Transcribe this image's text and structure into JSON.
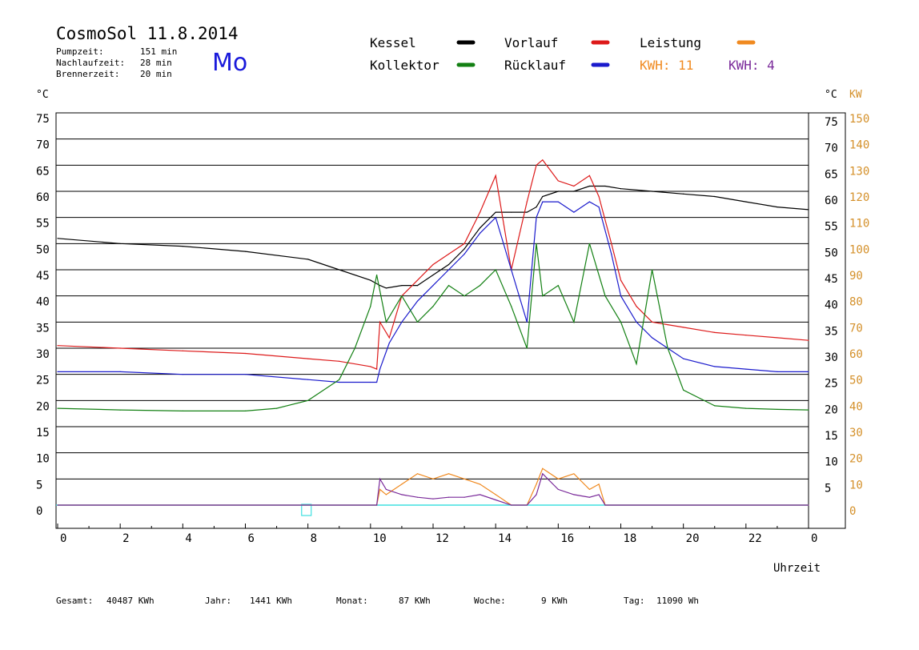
{
  "header": {
    "title": "CosmoSol 11.8.2014",
    "stats": [
      {
        "label": "Pumpzeit:",
        "value": "151 min"
      },
      {
        "label": "Nachlaufzeit:",
        "value": "28 min"
      },
      {
        "label": "Brennerzeit:",
        "value": "20 min"
      }
    ],
    "weekday": "Mo"
  },
  "legend": {
    "kessel": "Kessel",
    "kollektor": "Kollektor",
    "vorlauf": "Vorlauf",
    "ruecklauf": "Rücklauf",
    "leistung": "Leistung",
    "kwh_orange": "KWH: 11",
    "kwh_purple": "KWH: 4"
  },
  "colors": {
    "kessel": "#000000",
    "kollektor": "#138013",
    "vorlauf": "#dd1a1a",
    "ruecklauf": "#1a1acc",
    "leistung": "#f08a20",
    "kwh2": "#7a2a9a",
    "baseline": "#40e0e0",
    "axis_kw": "#d4902a"
  },
  "footer": [
    {
      "label": "Gesamt:",
      "value": "40487 KWh"
    },
    {
      "label": "Jahr:",
      "value": "1441 KWh"
    },
    {
      "label": "Monat:",
      "value": "87 KWh"
    },
    {
      "label": "Woche:",
      "value": "9 KWh"
    },
    {
      "label": "Tag:",
      "value": "11090 Wh"
    }
  ],
  "chart_data": {
    "type": "line",
    "xlabel": "Uhrzeit",
    "ylabel_left": "°C",
    "ylabel_right": "°C",
    "ylabel_right2": "KW",
    "xlim": [
      0,
      24
    ],
    "ylim": [
      0,
      75
    ],
    "x_ticks": [
      "0",
      "2",
      "4",
      "6",
      "8",
      "10",
      "12",
      "14",
      "16",
      "18",
      "20",
      "22",
      "0"
    ],
    "x_tick_hours": [
      0,
      2,
      4,
      6,
      8,
      10,
      12,
      14,
      16,
      18,
      20,
      22,
      24
    ],
    "y_ticks_left": [
      "0",
      "5",
      "10",
      "15",
      "20",
      "25",
      "30",
      "35",
      "40",
      "45",
      "50",
      "55",
      "60",
      "65",
      "70",
      "75"
    ],
    "y_ticks_right": [
      "5",
      "10",
      "15",
      "20",
      "25",
      "30",
      "35",
      "40",
      "45",
      "50",
      "55",
      "60",
      "65",
      "70",
      "75"
    ],
    "y_ticks_kw": [
      "0",
      "10",
      "20",
      "30",
      "40",
      "50",
      "60",
      "70",
      "80",
      "90",
      "100",
      "110",
      "120",
      "130",
      "140",
      "150"
    ],
    "grid": true,
    "legend_position": "top",
    "series": [
      {
        "name": "Kessel",
        "color_key": "kessel",
        "x": [
          0,
          2,
          4,
          6,
          8,
          9,
          10,
          10.3,
          10.5,
          11,
          11.5,
          12,
          12.5,
          13,
          13.5,
          14,
          14.5,
          15,
          15.3,
          15.5,
          16,
          16.5,
          17,
          17.5,
          18,
          19,
          20,
          21,
          22,
          23,
          24
        ],
        "y": [
          51,
          50,
          49.5,
          48.5,
          47,
          45,
          43,
          42,
          41.5,
          42,
          42,
          44,
          46,
          49,
          53,
          56,
          56,
          56,
          57,
          59,
          60,
          60,
          61,
          61,
          60.5,
          60,
          59.5,
          59,
          58,
          57,
          56.5
        ]
      },
      {
        "name": "Vorlauf",
        "color_key": "vorlauf",
        "x": [
          0,
          2,
          4,
          6,
          8,
          9,
          10,
          10.2,
          10.3,
          10.6,
          11,
          11.5,
          12,
          12.5,
          13,
          13.5,
          14,
          14.5,
          15,
          15.3,
          15.5,
          16,
          16.5,
          17,
          17.3,
          17.7,
          18,
          18.5,
          19,
          19.5,
          20,
          21,
          22,
          23,
          24
        ],
        "y": [
          30.5,
          30,
          29.5,
          29,
          28,
          27.5,
          26.5,
          26,
          35,
          32,
          40,
          43,
          46,
          48,
          50,
          56,
          63,
          45,
          58,
          65,
          66,
          62,
          61,
          63,
          59,
          50,
          43,
          38,
          35,
          34.5,
          34,
          33,
          32.5,
          32,
          31.5
        ]
      },
      {
        "name": "Rücklauf",
        "color_key": "ruecklauf",
        "x": [
          0,
          2,
          4,
          6,
          8,
          9,
          10,
          10.2,
          10.3,
          10.6,
          11,
          11.5,
          12,
          12.5,
          13,
          13.5,
          14,
          14.5,
          15,
          15.3,
          15.5,
          16,
          16.5,
          17,
          17.3,
          17.7,
          18,
          18.5,
          19,
          19.5,
          20,
          21,
          22,
          23,
          24
        ],
        "y": [
          25.5,
          25.5,
          25,
          25,
          24,
          23.5,
          23.5,
          23.5,
          26,
          31,
          35,
          39,
          42,
          45,
          48,
          52,
          55,
          45,
          35,
          55,
          58,
          58,
          56,
          58,
          57,
          48,
          40,
          35,
          32,
          30,
          28,
          26.5,
          26,
          25.5,
          25.5
        ]
      },
      {
        "name": "Kollektor",
        "color_key": "kollektor",
        "x": [
          0,
          2,
          4,
          6,
          7,
          8,
          9,
          9.5,
          10,
          10.2,
          10.5,
          11,
          11.5,
          12,
          12.5,
          13,
          13.5,
          14,
          14.5,
          15,
          15.3,
          15.5,
          16,
          16.5,
          17,
          17.5,
          18,
          18.5,
          19,
          19.5,
          20,
          21,
          22,
          23,
          24
        ],
        "y": [
          18.5,
          18.2,
          18,
          18,
          18.5,
          20,
          24,
          30,
          38,
          44,
          35,
          40,
          35,
          38,
          42,
          40,
          42,
          45,
          38,
          30,
          50,
          40,
          42,
          35,
          50,
          40,
          35,
          27,
          45,
          30,
          22,
          19,
          18.5,
          18.3,
          18.2
        ]
      },
      {
        "name": "Leistung",
        "color_key": "leistung",
        "x": [
          0,
          10.2,
          10.3,
          10.5,
          11,
          11.5,
          12,
          12.5,
          13,
          13.5,
          14,
          14.5,
          15,
          15.3,
          15.5,
          16,
          16.5,
          17,
          17.3,
          17.5,
          24
        ],
        "y": [
          0,
          0,
          3,
          2,
          4,
          6,
          5,
          6,
          5,
          4,
          2,
          0,
          0,
          4,
          7,
          5,
          6,
          3,
          4,
          0,
          0
        ]
      },
      {
        "name": "KWH",
        "color_key": "kwh2",
        "x": [
          0,
          10.2,
          10.3,
          10.5,
          11,
          11.5,
          12,
          12.5,
          13,
          13.5,
          14,
          14.5,
          15,
          15.3,
          15.5,
          16,
          16.5,
          17,
          17.3,
          17.5,
          24
        ],
        "y": [
          0,
          0,
          5,
          3,
          2,
          1.5,
          1.2,
          1.5,
          1.5,
          2,
          1,
          0,
          0,
          2,
          6,
          3,
          2,
          1.5,
          2,
          0,
          0
        ]
      }
    ],
    "marker_label": "8"
  }
}
